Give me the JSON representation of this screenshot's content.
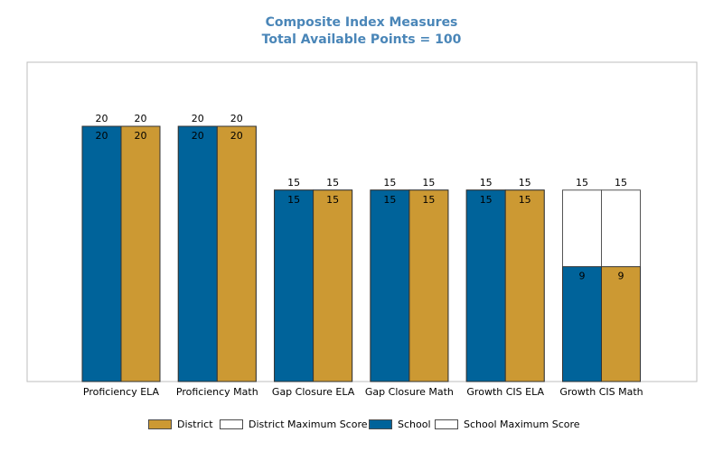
{
  "chart_data": {
    "type": "bar",
    "title": "Composite Index Measures",
    "subtitle": "Total Available Points = 100",
    "categories": [
      "Proficiency ELA",
      "Proficiency Math",
      "Gap Closure ELA",
      "Gap Closure Math",
      "Growth CIS ELA",
      "Growth CIS Math"
    ],
    "series": [
      {
        "name": "School",
        "values": [
          20,
          20,
          15,
          15,
          15,
          9
        ],
        "color": "#00639a"
      },
      {
        "name": "District",
        "values": [
          20,
          20,
          15,
          15,
          15,
          9
        ],
        "color": "#cc9933"
      },
      {
        "name": "School Maximum Score",
        "values": [
          20,
          20,
          15,
          15,
          15,
          15
        ],
        "color": "#ffffff"
      },
      {
        "name": "District Maximum Score",
        "values": [
          20,
          20,
          15,
          15,
          15,
          15
        ],
        "color": "#ffffff"
      }
    ],
    "ylim": [
      0,
      25
    ],
    "grid": false,
    "legend_position": "bottom"
  },
  "legend": {
    "items": [
      {
        "label": "District",
        "color": "#cc9933"
      },
      {
        "label": "District Maximum Score",
        "color": "#ffffff"
      },
      {
        "label": "School",
        "color": "#00639a"
      },
      {
        "label": "School Maximum Score",
        "color": "#ffffff"
      }
    ]
  }
}
